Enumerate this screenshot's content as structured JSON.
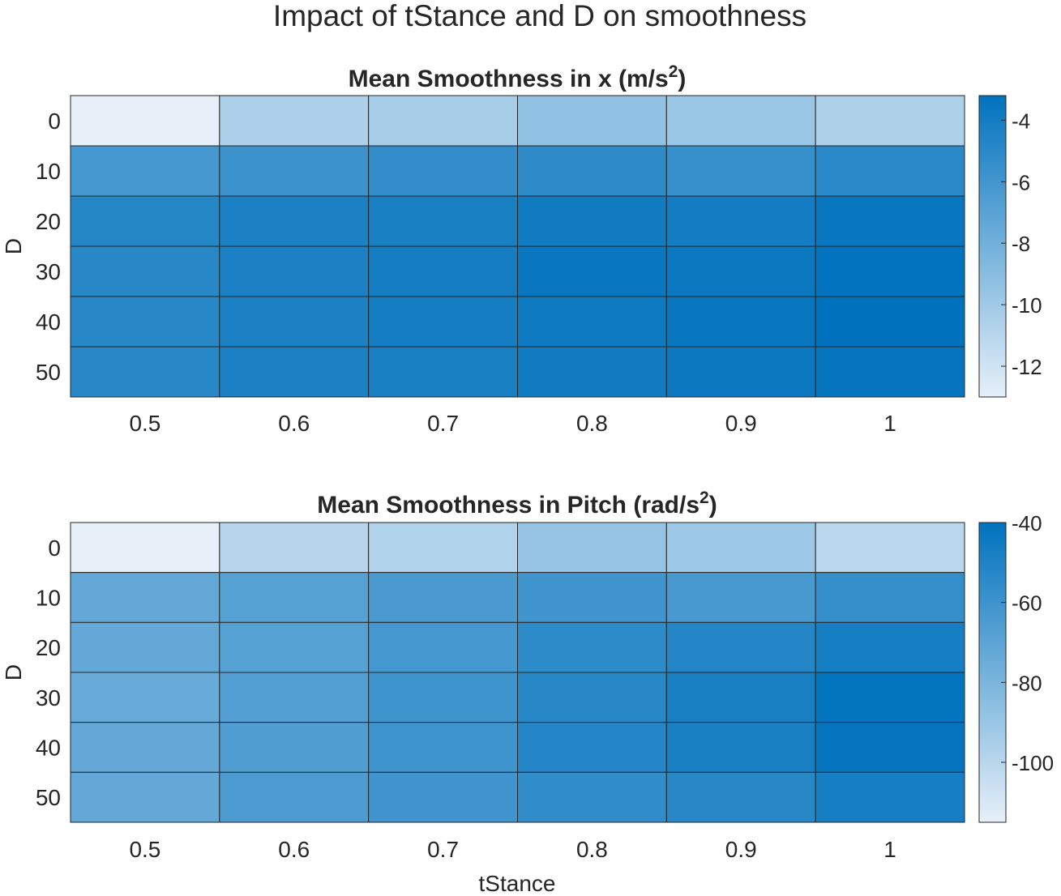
{
  "figure": {
    "title": "Impact of tStance and D on smoothness",
    "xlabel": "tStance"
  },
  "colormap": {
    "light": "#e7f0f9",
    "dark": "#0072bd"
  },
  "chart_data": [
    {
      "type": "heatmap",
      "title_main": "Mean Smoothness in x (m/s",
      "title_sup": "2",
      "title_close": ")",
      "xlabel": "",
      "ylabel": "D",
      "x": [
        "0.5",
        "0.6",
        "0.7",
        "0.8",
        "0.9",
        "1"
      ],
      "y": [
        "0",
        "10",
        "20",
        "30",
        "40",
        "50"
      ],
      "values": [
        [
          -13.0,
          -10.5,
          -10.3,
          -9.4,
          -9.7,
          -10.6
        ],
        [
          -6.1,
          -5.7,
          -5.3,
          -5.2,
          -5.5,
          -5.0
        ],
        [
          -4.8,
          -4.4,
          -4.2,
          -3.9,
          -4.0,
          -3.6
        ],
        [
          -4.9,
          -4.4,
          -4.1,
          -3.6,
          -3.7,
          -3.3
        ],
        [
          -4.9,
          -4.4,
          -4.1,
          -3.8,
          -3.5,
          -3.2
        ],
        [
          -4.9,
          -4.4,
          -4.2,
          -3.9,
          -3.7,
          -3.4
        ]
      ],
      "colorbar": {
        "clim": [
          -13.0,
          -3.2
        ],
        "ticks": [
          -12,
          -10,
          -8,
          -6,
          -4
        ]
      }
    },
    {
      "type": "heatmap",
      "title_main": "Mean Smoothness in Pitch (rad/s",
      "title_sup": "2",
      "title_close": ")",
      "xlabel": "tStance",
      "ylabel": "D",
      "x": [
        "0.5",
        "0.6",
        "0.7",
        "0.8",
        "0.9",
        "1"
      ],
      "y": [
        "0",
        "10",
        "20",
        "30",
        "40",
        "50"
      ],
      "values": [
        [
          -115,
          -99,
          -97,
          -89,
          -91,
          -100
        ],
        [
          -72,
          -68,
          -64,
          -61,
          -63,
          -57
        ],
        [
          -72,
          -68,
          -62,
          -55,
          -52,
          -47
        ],
        [
          -74,
          -67,
          -60,
          -53,
          -48,
          -41
        ],
        [
          -72,
          -66,
          -60,
          -52,
          -48,
          -42
        ],
        [
          -72,
          -65,
          -61,
          -56,
          -53,
          -47
        ]
      ],
      "colorbar": {
        "clim": [
          -115,
          -40
        ],
        "ticks": [
          -100,
          -80,
          -60,
          -40
        ]
      }
    }
  ]
}
